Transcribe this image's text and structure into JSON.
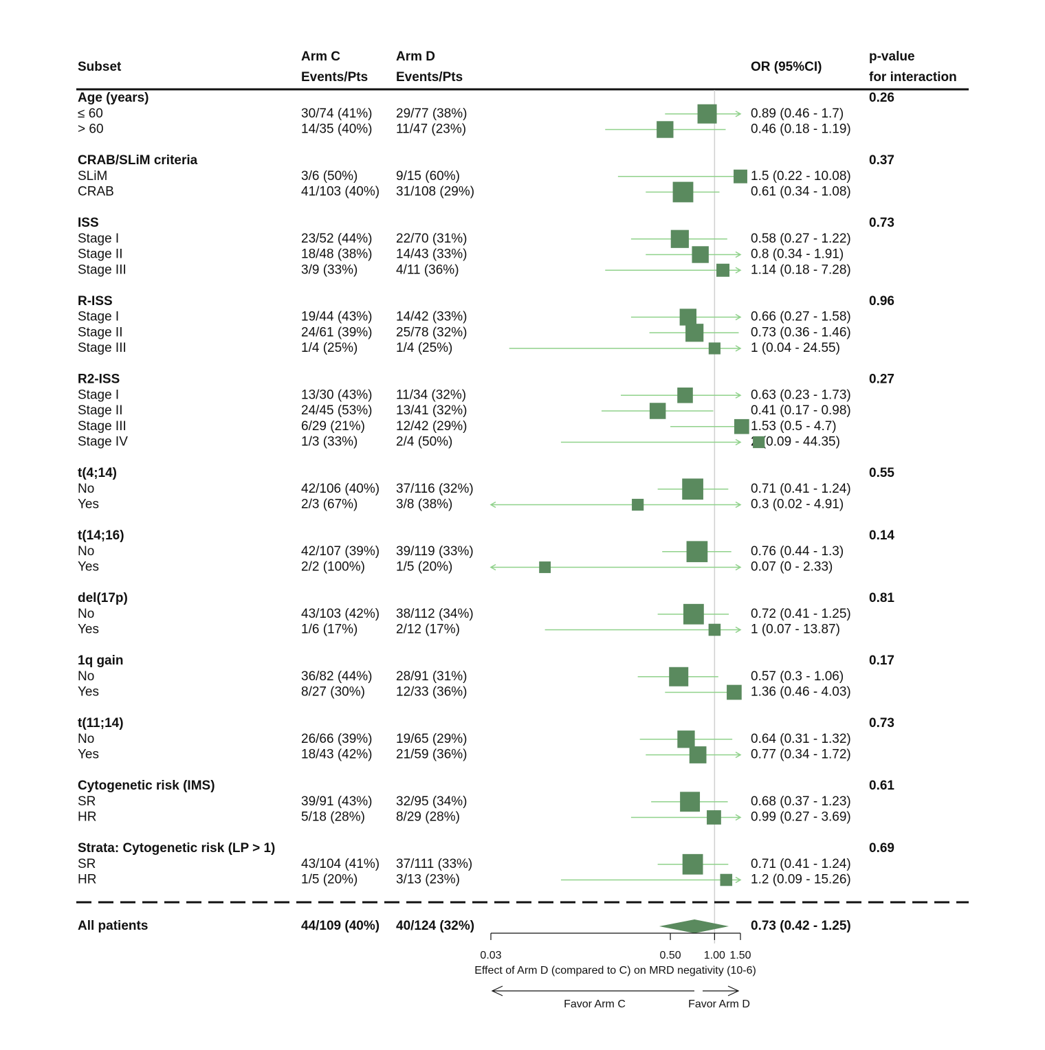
{
  "chart_data": {
    "type": "forest",
    "x_scale": "log",
    "columns": {
      "subset": "Subset",
      "arm_c_top": "Arm C",
      "arm_c_bottom": "Events/Pts",
      "arm_d_top": "Arm D",
      "arm_d_bottom": "Events/Pts",
      "or": "OR (95%CI)",
      "p_top": "p-value",
      "p_bottom": "for interaction"
    },
    "groups": [
      {
        "label": "Age (years)",
        "p": "0.26",
        "rows": [
          {
            "label": "≤ 60",
            "arm_c": "30/74 (41%)",
            "arm_d": "29/77 (38%)",
            "or_text": "0.89 (0.46 - 1.7)",
            "or": 0.89,
            "lo": 0.46,
            "hi": 1.7,
            "weight": 1.0
          },
          {
            "label": "> 60",
            "arm_c": "14/35 (40%)",
            "arm_d": "11/47 (23%)",
            "or_text": "0.46 (0.18 - 1.19)",
            "or": 0.46,
            "lo": 0.18,
            "hi": 1.19,
            "weight": 0.8
          }
        ]
      },
      {
        "label": "CRAB/SLiM criteria",
        "p": "0.37",
        "rows": [
          {
            "label": "SLiM",
            "arm_c": "3/6 (50%)",
            "arm_d": "9/15 (60%)",
            "or_text": "1.5 (0.22 - 10.08)",
            "or": 1.5,
            "lo": 0.22,
            "hi": 10.08,
            "weight": 0.55
          },
          {
            "label": "CRAB",
            "arm_c": "41/103 (40%)",
            "arm_d": "31/108 (29%)",
            "or_text": "0.61 (0.34 - 1.08)",
            "or": 0.61,
            "lo": 0.34,
            "hi": 1.08,
            "weight": 1.1
          }
        ]
      },
      {
        "label": "ISS",
        "p": "0.73",
        "rows": [
          {
            "label": "Stage I",
            "arm_c": "23/52 (44%)",
            "arm_d": "22/70 (31%)",
            "or_text": "0.58 (0.27 - 1.22)",
            "or": 0.58,
            "lo": 0.27,
            "hi": 1.22,
            "weight": 0.9
          },
          {
            "label": "Stage II",
            "arm_c": "18/48 (38%)",
            "arm_d": "14/43 (33%)",
            "or_text": "0.8 (0.34 - 1.91)",
            "or": 0.8,
            "lo": 0.34,
            "hi": 1.91,
            "weight": 0.8
          },
          {
            "label": "Stage III",
            "arm_c": "3/9 (33%)",
            "arm_d": "4/11 (36%)",
            "or_text": "1.14 (0.18 - 7.28)",
            "or": 1.14,
            "lo": 0.18,
            "hi": 7.28,
            "weight": 0.5
          }
        ]
      },
      {
        "label": "R-ISS",
        "p": "0.96",
        "rows": [
          {
            "label": "Stage I",
            "arm_c": "19/44 (43%)",
            "arm_d": "14/42 (33%)",
            "or_text": "0.66 (0.27 - 1.58)",
            "or": 0.66,
            "lo": 0.27,
            "hi": 1.58,
            "weight": 0.8
          },
          {
            "label": "Stage II",
            "arm_c": "24/61 (39%)",
            "arm_d": "25/78 (32%)",
            "or_text": "0.73 (0.36 - 1.46)",
            "or": 0.73,
            "lo": 0.36,
            "hi": 1.46,
            "weight": 0.9
          },
          {
            "label": "Stage III",
            "arm_c": "1/4 (25%)",
            "arm_d": "1/4 (25%)",
            "or_text": "1 (0.04 - 24.55)",
            "or": 1.0,
            "lo": 0.04,
            "hi": 24.55,
            "weight": 0.4
          }
        ]
      },
      {
        "label": "R2-ISS",
        "p": "0.27",
        "rows": [
          {
            "label": "Stage I",
            "arm_c": "13/30 (43%)",
            "arm_d": "11/34 (32%)",
            "or_text": "0.63 (0.23 - 1.73)",
            "or": 0.63,
            "lo": 0.23,
            "hi": 1.73,
            "weight": 0.7
          },
          {
            "label": "Stage II",
            "arm_c": "24/45 (53%)",
            "arm_d": "13/41 (32%)",
            "or_text": "0.41 (0.17 - 0.98)",
            "or": 0.41,
            "lo": 0.17,
            "hi": 0.98,
            "weight": 0.75
          },
          {
            "label": "Stage III",
            "arm_c": "6/29 (21%)",
            "arm_d": "12/42 (29%)",
            "or_text": "1.53 (0.5 - 4.7)",
            "or": 1.53,
            "lo": 0.5,
            "hi": 4.7,
            "weight": 0.65
          },
          {
            "label": "Stage IV",
            "arm_c": "1/3 (33%)",
            "arm_d": "2/4 (50%)",
            "or_text": "2 (0.09 - 44.35)",
            "or": 2.0,
            "lo": 0.09,
            "hi": 44.35,
            "weight": 0.4
          }
        ]
      },
      {
        "label": "t(4;14)",
        "p": "0.55",
        "rows": [
          {
            "label": "No",
            "arm_c": "42/106 (40%)",
            "arm_d": "37/116 (32%)",
            "or_text": "0.71 (0.41 - 1.24)",
            "or": 0.71,
            "lo": 0.41,
            "hi": 1.24,
            "weight": 1.15
          },
          {
            "label": "Yes",
            "arm_c": "2/3 (67%)",
            "arm_d": "3/8 (38%)",
            "or_text": "0.3 (0.02 - 4.91)",
            "or": 0.3,
            "lo": 0.02,
            "hi": 4.91,
            "weight": 0.4
          }
        ]
      },
      {
        "label": "t(14;16)",
        "p": "0.14",
        "rows": [
          {
            "label": "No",
            "arm_c": "42/107 (39%)",
            "arm_d": "39/119 (33%)",
            "or_text": "0.76 (0.44 - 1.3)",
            "or": 0.76,
            "lo": 0.44,
            "hi": 1.3,
            "weight": 1.15
          },
          {
            "label": "Yes",
            "arm_c": "2/2 (100%)",
            "arm_d": "1/5 (20%)",
            "or_text": "0.07 (0 - 2.33)",
            "or": 0.07,
            "lo": 0.0,
            "hi": 2.33,
            "weight": 0.38
          }
        ]
      },
      {
        "label": "del(17p)",
        "p": "0.81",
        "rows": [
          {
            "label": "No",
            "arm_c": "43/103 (42%)",
            "arm_d": "38/112 (34%)",
            "or_text": "0.72 (0.41 - 1.25)",
            "or": 0.72,
            "lo": 0.41,
            "hi": 1.25,
            "weight": 1.1
          },
          {
            "label": "Yes",
            "arm_c": "1/6 (17%)",
            "arm_d": "2/12 (17%)",
            "or_text": "1 (0.07 - 13.87)",
            "or": 1.0,
            "lo": 0.07,
            "hi": 13.87,
            "weight": 0.42
          }
        ]
      },
      {
        "label": "1q gain",
        "p": "0.17",
        "rows": [
          {
            "label": "No",
            "arm_c": "36/82 (44%)",
            "arm_d": "28/91 (31%)",
            "or_text": "0.57 (0.3 - 1.06)",
            "or": 0.57,
            "lo": 0.3,
            "hi": 1.06,
            "weight": 1.0
          },
          {
            "label": "Yes",
            "arm_c": "8/27 (30%)",
            "arm_d": "12/33 (36%)",
            "or_text": "1.36 (0.46 - 4.03)",
            "or": 1.36,
            "lo": 0.46,
            "hi": 4.03,
            "weight": 0.65
          }
        ]
      },
      {
        "label": "t(11;14)",
        "p": "0.73",
        "rows": [
          {
            "label": "No",
            "arm_c": "26/66 (39%)",
            "arm_d": "19/65 (29%)",
            "or_text": "0.64 (0.31 - 1.32)",
            "or": 0.64,
            "lo": 0.31,
            "hi": 1.32,
            "weight": 0.85
          },
          {
            "label": "Yes",
            "arm_c": "18/43 (42%)",
            "arm_d": "21/59 (36%)",
            "or_text": "0.77 (0.34 - 1.72)",
            "or": 0.77,
            "lo": 0.34,
            "hi": 1.72,
            "weight": 0.82
          }
        ]
      },
      {
        "label": "Cytogenetic risk (IMS)",
        "p": "0.61",
        "rows": [
          {
            "label": "SR",
            "arm_c": "39/91 (43%)",
            "arm_d": "32/95 (34%)",
            "or_text": "0.68 (0.37 - 1.23)",
            "or": 0.68,
            "lo": 0.37,
            "hi": 1.23,
            "weight": 1.05
          },
          {
            "label": "HR",
            "arm_c": "5/18 (28%)",
            "arm_d": "8/29 (28%)",
            "or_text": "0.99 (0.27 - 3.69)",
            "or": 0.99,
            "lo": 0.27,
            "hi": 3.69,
            "weight": 0.6
          }
        ]
      },
      {
        "label": "Strata: Cytogenetic risk (LP > 1)",
        "p": "0.69",
        "rows": [
          {
            "label": "SR",
            "arm_c": "43/104 (41%)",
            "arm_d": "37/111 (33%)",
            "or_text": "0.71 (0.41 - 1.24)",
            "or": 0.71,
            "lo": 0.41,
            "hi": 1.24,
            "weight": 1.1
          },
          {
            "label": "HR",
            "arm_c": "1/5 (20%)",
            "arm_d": "3/13 (23%)",
            "or_text": "1.2 (0.09 - 15.26)",
            "or": 1.2,
            "lo": 0.09,
            "hi": 15.26,
            "weight": 0.42
          }
        ]
      }
    ],
    "overall": {
      "label": "All patients",
      "arm_c": "44/109 (40%)",
      "arm_d": "40/124 (32%)",
      "or_text": "0.73 (0.42 - 1.25)",
      "or": 0.73,
      "lo": 0.42,
      "hi": 1.25
    },
    "x_axis": {
      "range": [
        0.03,
        1.5
      ],
      "ticks": [
        {
          "value": 0.03,
          "label": "0.03"
        },
        {
          "value": 0.5,
          "label": "0.50"
        },
        {
          "value": 1.0,
          "label": "1.00"
        },
        {
          "value": 1.5,
          "label": "1.50"
        }
      ],
      "reference": 1.0,
      "label": "Effect of Arm D (compared to C) on MRD negativity (10-6)",
      "favor_left": "Favor Arm C",
      "favor_right": "Favor Arm D"
    },
    "colors": {
      "marker": "#5a8a5e",
      "ci_line": "#8fd18a",
      "ref_line": "#cfcfcf",
      "text": "#111111"
    }
  }
}
